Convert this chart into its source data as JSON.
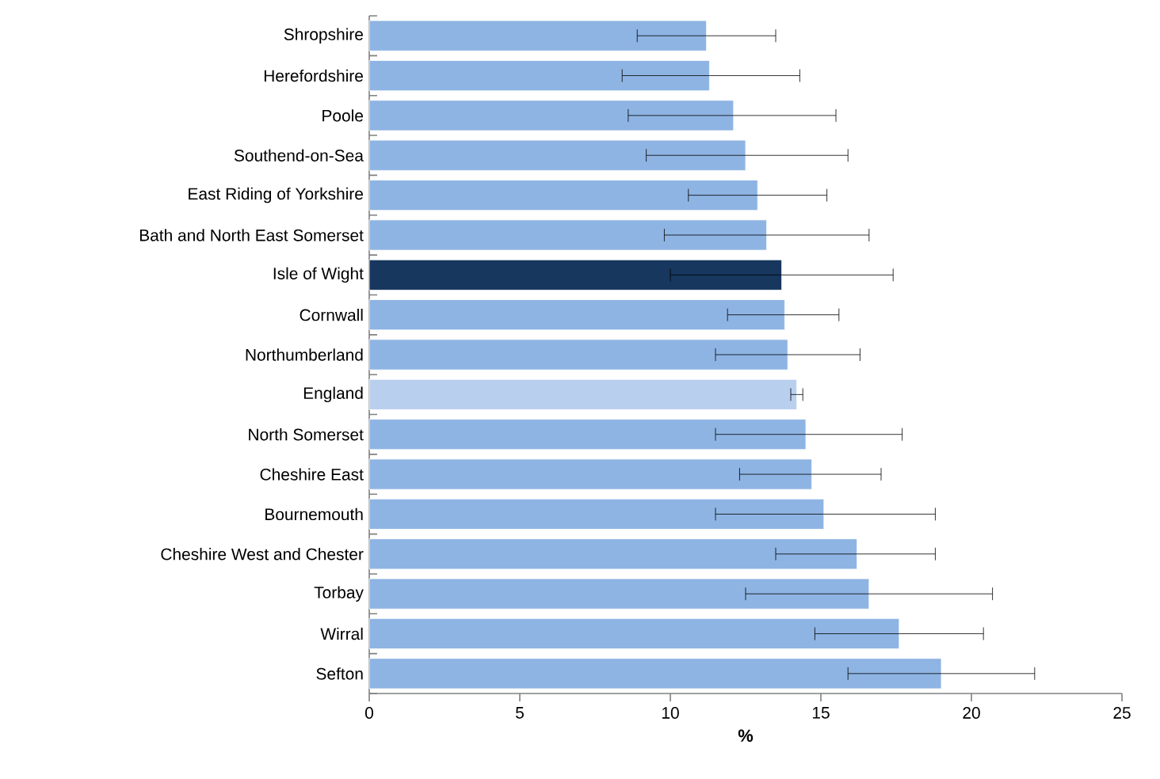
{
  "chart_data": {
    "type": "bar",
    "orientation": "horizontal",
    "xlabel": "%",
    "categories": [
      "Shropshire",
      "Herefordshire",
      "Poole",
      "Southend-on-Sea",
      "East Riding of Yorkshire",
      "Bath and North East Somerset",
      "Isle of Wight",
      "Cornwall",
      "Northumberland",
      "England",
      "North Somerset",
      "Cheshire East",
      "Bournemouth",
      "Cheshire West and Chester",
      "Torbay",
      "Wirral",
      "Sefton"
    ],
    "values": [
      11.2,
      11.3,
      12.1,
      12.5,
      12.9,
      13.2,
      13.7,
      13.8,
      13.9,
      14.2,
      14.5,
      14.7,
      15.1,
      16.2,
      16.6,
      17.6,
      19.0
    ],
    "errors": [
      [
        8.9,
        13.5
      ],
      [
        8.4,
        14.3
      ],
      [
        8.6,
        15.5
      ],
      [
        9.2,
        15.9
      ],
      [
        10.6,
        15.2
      ],
      [
        9.8,
        16.6
      ],
      [
        10.0,
        17.4
      ],
      [
        11.9,
        15.6
      ],
      [
        11.5,
        16.3
      ],
      [
        14.0,
        14.4
      ],
      [
        11.5,
        17.7
      ],
      [
        12.3,
        17.0
      ],
      [
        11.5,
        18.8
      ],
      [
        13.5,
        18.8
      ],
      [
        12.5,
        20.7
      ],
      [
        14.8,
        20.4
      ],
      [
        15.9,
        22.1
      ]
    ],
    "colors": [
      "#8eb4e3",
      "#8eb4e3",
      "#8eb4e3",
      "#8eb4e3",
      "#8eb4e3",
      "#8eb4e3",
      "#17375e",
      "#8eb4e3",
      "#8eb4e3",
      "#b9cfee",
      "#8eb4e3",
      "#8eb4e3",
      "#8eb4e3",
      "#8eb4e3",
      "#8eb4e3",
      "#8eb4e3",
      "#8eb4e3"
    ],
    "xlim": [
      0,
      25
    ],
    "xticks": [
      0,
      5,
      10,
      15,
      20,
      25
    ],
    "grid": false
  }
}
